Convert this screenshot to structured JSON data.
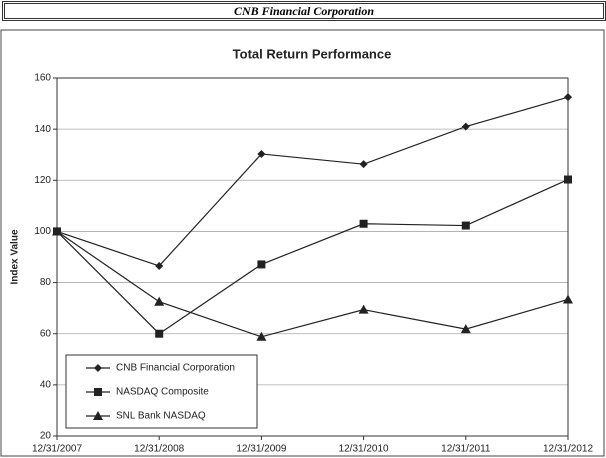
{
  "page_header": "CNB Financial Corporation",
  "chart_data": {
    "type": "line",
    "title": "Total Return Performance",
    "y_label": "Index Value",
    "categories": [
      "12/31/2007",
      "12/31/2008",
      "12/31/2009",
      "12/31/2010",
      "12/31/2011",
      "12/31/2012"
    ],
    "series": [
      {
        "name": "CNB Financial Corporation",
        "color": "#222222",
        "marker": "diamond",
        "values": [
          100,
          86.5,
          130.3,
          126.3,
          141,
          152.5
        ]
      },
      {
        "name": "NASDAQ Composite",
        "color": "#222222",
        "marker": "square",
        "values": [
          100,
          60,
          87.1,
          103,
          102.3,
          120.3
        ]
      },
      {
        "name": "SNL Bank NASDAQ",
        "color": "#222222",
        "marker": "triangle",
        "values": [
          100,
          72.5,
          58.8,
          69.4,
          61.8,
          73.4
        ]
      }
    ],
    "ylim": [
      20,
      160
    ],
    "yticks": [
      20,
      40,
      60,
      80,
      100,
      120,
      140,
      160
    ],
    "grid": true,
    "legend": "lower-left"
  }
}
